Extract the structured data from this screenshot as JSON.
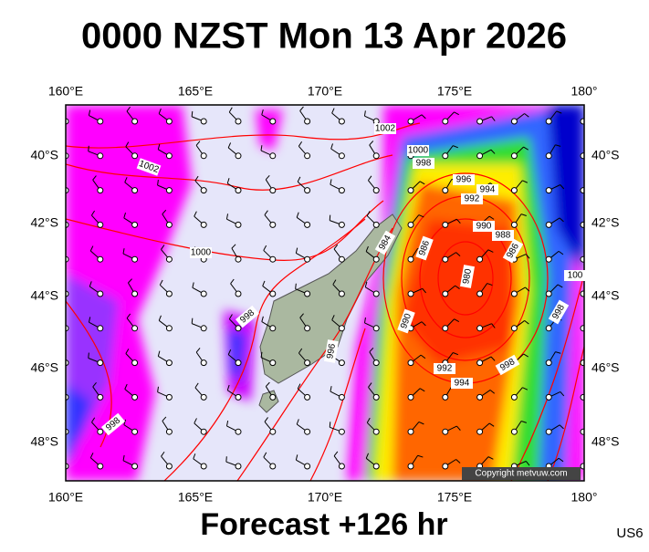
{
  "header": {
    "title": "0000 NZST Mon 13 Apr 2026"
  },
  "map": {
    "lon_labels": [
      "160°E",
      "165°E",
      "170°E",
      "175°E",
      "180°"
    ],
    "lat_labels": [
      "40°S",
      "42°S",
      "44°S",
      "46°S",
      "48°S"
    ],
    "isobar_labels": [
      "1002",
      "1002",
      "1000",
      "1000",
      "998",
      "998",
      "998",
      "996",
      "994",
      "992",
      "990",
      "988",
      "986",
      "984",
      "986",
      "980",
      "990",
      "992",
      "994",
      "996",
      "998",
      "998",
      "100"
    ],
    "copyright": "Copyright metvuw.com"
  },
  "footer": {
    "forecast": "Forecast +126 hr",
    "code": "US6"
  }
}
